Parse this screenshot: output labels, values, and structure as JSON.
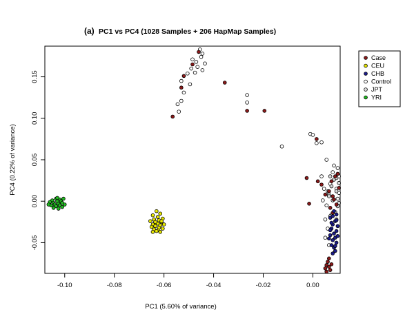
{
  "chart_data": {
    "type": "scatter",
    "panel_label": "(a)",
    "title": "PC1 vs PC4 (1028 Samples + 206 HapMap Samples)",
    "xlabel": "PC1 (5.60% of variance)",
    "ylabel": "PC4 (0.22% of variance)",
    "xlim": [
      -0.108,
      0.011
    ],
    "ylim": [
      -0.087,
      0.187
    ],
    "x_ticks": [
      {
        "value": -0.1,
        "label": "-0.10"
      },
      {
        "value": -0.08,
        "label": "-0.08"
      },
      {
        "value": -0.06,
        "label": "-0.06"
      },
      {
        "value": -0.04,
        "label": "-0.04"
      },
      {
        "value": -0.02,
        "label": "-0.02"
      },
      {
        "value": 0.0,
        "label": "0.00"
      }
    ],
    "y_ticks": [
      {
        "value": -0.05,
        "label": "-0.05"
      },
      {
        "value": 0.0,
        "label": "0.00"
      },
      {
        "value": 0.05,
        "label": "0.05"
      },
      {
        "value": 0.1,
        "label": "0.10"
      },
      {
        "value": 0.15,
        "label": "0.15"
      }
    ],
    "grid": false,
    "legend_position": "top-right (outside plot)",
    "series": [
      {
        "name": "Control",
        "color": "#ffffff",
        "points": [
          [
            -0.0455,
            0.183
          ],
          [
            -0.0445,
            0.178
          ],
          [
            -0.045,
            0.174
          ],
          [
            -0.0485,
            0.171
          ],
          [
            -0.047,
            0.168
          ],
          [
            -0.0435,
            0.166
          ],
          [
            -0.0465,
            0.162
          ],
          [
            -0.049,
            0.16
          ],
          [
            -0.0445,
            0.158
          ],
          [
            -0.0475,
            0.155
          ],
          [
            -0.0505,
            0.154
          ],
          [
            -0.053,
            0.145
          ],
          [
            -0.0495,
            0.141
          ],
          [
            -0.052,
            0.131
          ],
          [
            -0.053,
            0.121
          ],
          [
            -0.0545,
            0.117
          ],
          [
            -0.054,
            0.108
          ],
          [
            -0.0265,
            0.128
          ],
          [
            -0.0265,
            0.119
          ],
          [
            -0.0125,
            0.066
          ],
          [
            -0.001,
            0.081
          ],
          [
            0.0,
            0.08
          ],
          [
            0.0035,
            0.071
          ],
          [
            0.0015,
            0.07
          ],
          [
            0.0055,
            0.05
          ],
          [
            0.0085,
            0.043
          ],
          [
            0.01,
            0.04
          ],
          [
            0.008,
            0.035
          ],
          [
            0.0105,
            0.03
          ],
          [
            0.0035,
            0.03
          ],
          [
            0.007,
            0.021
          ],
          [
            0.0095,
            0.015
          ],
          [
            0.0045,
            0.015
          ],
          [
            0.0065,
            0.008
          ],
          [
            0.01,
            0.003
          ],
          [
            0.0055,
            -0.005
          ],
          [
            0.0075,
            -0.016
          ],
          [
            0.005,
            -0.022
          ],
          [
            0.006,
            -0.033
          ],
          [
            0.005,
            -0.044
          ],
          [
            0.0095,
            -0.022
          ],
          [
            0.0065,
            -0.053
          ],
          [
            0.004,
            0.001
          ],
          [
            0.0105,
            0.01
          ]
        ]
      },
      {
        "name": "JPT",
        "color": "#d9d9d9",
        "points": [
          [
            0.007,
            0.03
          ],
          [
            0.0085,
            0.026
          ],
          [
            0.0105,
            0.022
          ],
          [
            0.0075,
            0.018
          ],
          [
            0.0095,
            0.012
          ],
          [
            0.0065,
            0.006
          ],
          [
            0.008,
            0.001
          ],
          [
            0.01,
            -0.006
          ],
          [
            0.009,
            -0.013
          ],
          [
            0.007,
            -0.018
          ],
          [
            0.0105,
            -0.002
          ],
          [
            0.006,
            0.012
          ],
          [
            0.0095,
            0.028
          ]
        ]
      },
      {
        "name": "Case",
        "color": "#8b1a1a",
        "points": [
          [
            -0.046,
            0.18
          ],
          [
            -0.0485,
            0.165
          ],
          [
            -0.052,
            0.151
          ],
          [
            -0.053,
            0.137
          ],
          [
            -0.0565,
            0.102
          ],
          [
            -0.0355,
            0.143
          ],
          [
            -0.0265,
            0.109
          ],
          [
            -0.0195,
            0.109
          ],
          [
            0.0015,
            0.075
          ],
          [
            -0.0025,
            0.028
          ],
          [
            0.002,
            0.024
          ],
          [
            0.0035,
            0.02
          ],
          [
            -0.0015,
            -0.003
          ],
          [
            0.005,
            0.008
          ],
          [
            0.009,
            0.03
          ],
          [
            0.0075,
            0.024
          ],
          [
            0.01,
            0.033
          ],
          [
            0.0065,
            0.012
          ],
          [
            0.0085,
            0.002
          ],
          [
            0.0095,
            -0.004
          ],
          [
            0.008,
            -0.014
          ],
          [
            0.007,
            -0.008
          ],
          [
            0.0105,
            0.016
          ],
          [
            0.008,
            0.006
          ],
          [
            0.0055,
            -0.077
          ],
          [
            0.0065,
            -0.079
          ],
          [
            0.006,
            -0.073
          ],
          [
            0.007,
            -0.083
          ],
          [
            0.005,
            -0.081
          ],
          [
            0.0065,
            -0.069
          ],
          [
            0.0075,
            -0.076
          ],
          [
            0.0055,
            -0.085
          ]
        ]
      },
      {
        "name": "CHB",
        "color": "#1c1c8c",
        "points": [
          [
            0.0085,
            -0.012
          ],
          [
            0.0095,
            -0.016
          ],
          [
            0.007,
            -0.02
          ],
          [
            0.009,
            -0.024
          ],
          [
            0.008,
            -0.028
          ],
          [
            0.01,
            -0.03
          ],
          [
            0.0075,
            -0.033
          ],
          [
            0.0095,
            -0.036
          ],
          [
            0.0085,
            -0.039
          ],
          [
            0.007,
            -0.041
          ],
          [
            0.009,
            -0.044
          ],
          [
            0.008,
            -0.047
          ],
          [
            0.0095,
            -0.05
          ],
          [
            0.0075,
            -0.053
          ],
          [
            0.0085,
            -0.056
          ],
          [
            0.009,
            -0.06
          ],
          [
            0.008,
            -0.063
          ],
          [
            0.007,
            -0.035
          ],
          [
            0.01,
            -0.042
          ],
          [
            0.0075,
            -0.026
          ],
          [
            0.0065,
            -0.045
          ],
          [
            0.009,
            -0.054
          ],
          [
            0.008,
            -0.018
          ],
          [
            0.0095,
            -0.023
          ]
        ]
      },
      {
        "name": "CEU",
        "color": "#e6e600",
        "points": [
          [
            -0.063,
            -0.012
          ],
          [
            -0.0615,
            -0.015
          ],
          [
            -0.0645,
            -0.017
          ],
          [
            -0.0625,
            -0.019
          ],
          [
            -0.0605,
            -0.021
          ],
          [
            -0.064,
            -0.022
          ],
          [
            -0.062,
            -0.023
          ],
          [
            -0.0655,
            -0.024
          ],
          [
            -0.061,
            -0.025
          ],
          [
            -0.0635,
            -0.026
          ],
          [
            -0.0625,
            -0.027
          ],
          [
            -0.0645,
            -0.028
          ],
          [
            -0.06,
            -0.028
          ],
          [
            -0.0615,
            -0.029
          ],
          [
            -0.0635,
            -0.03
          ],
          [
            -0.065,
            -0.031
          ],
          [
            -0.062,
            -0.032
          ],
          [
            -0.0605,
            -0.033
          ],
          [
            -0.064,
            -0.034
          ],
          [
            -0.0625,
            -0.035
          ],
          [
            -0.063,
            -0.036
          ],
          [
            -0.0615,
            -0.037
          ],
          [
            -0.0645,
            -0.037
          ],
          [
            -0.0635,
            -0.025
          ],
          [
            -0.061,
            -0.024
          ]
        ]
      },
      {
        "name": "YRI",
        "color": "#22bb22",
        "points": [
          [
            -0.1035,
            0.003
          ],
          [
            -0.102,
            0.002
          ],
          [
            -0.1005,
            0.003
          ],
          [
            -0.105,
            0.001
          ],
          [
            -0.103,
            0.0
          ],
          [
            -0.1015,
            0.0
          ],
          [
            -0.106,
            -0.001
          ],
          [
            -0.1045,
            -0.002
          ],
          [
            -0.101,
            -0.002
          ],
          [
            -0.1025,
            -0.003
          ],
          [
            -0.104,
            -0.004
          ],
          [
            -0.1055,
            -0.005
          ],
          [
            -0.102,
            -0.005
          ],
          [
            -0.1035,
            -0.006
          ],
          [
            -0.101,
            -0.007
          ],
          [
            -0.1045,
            -0.008
          ],
          [
            -0.1025,
            -0.009
          ],
          [
            -0.1,
            -0.004
          ],
          [
            -0.1065,
            -0.004
          ],
          [
            -0.103,
            0.004
          ]
        ]
      }
    ],
    "legend": [
      {
        "label": "Case",
        "color": "#8b1a1a"
      },
      {
        "label": "CEU",
        "color": "#e6e600"
      },
      {
        "label": "CHB",
        "color": "#1c1c8c"
      },
      {
        "label": "Control",
        "color": "#ffffff"
      },
      {
        "label": "JPT",
        "color": "#d9d9d9"
      },
      {
        "label": "YRI",
        "color": "#22bb22"
      }
    ]
  }
}
